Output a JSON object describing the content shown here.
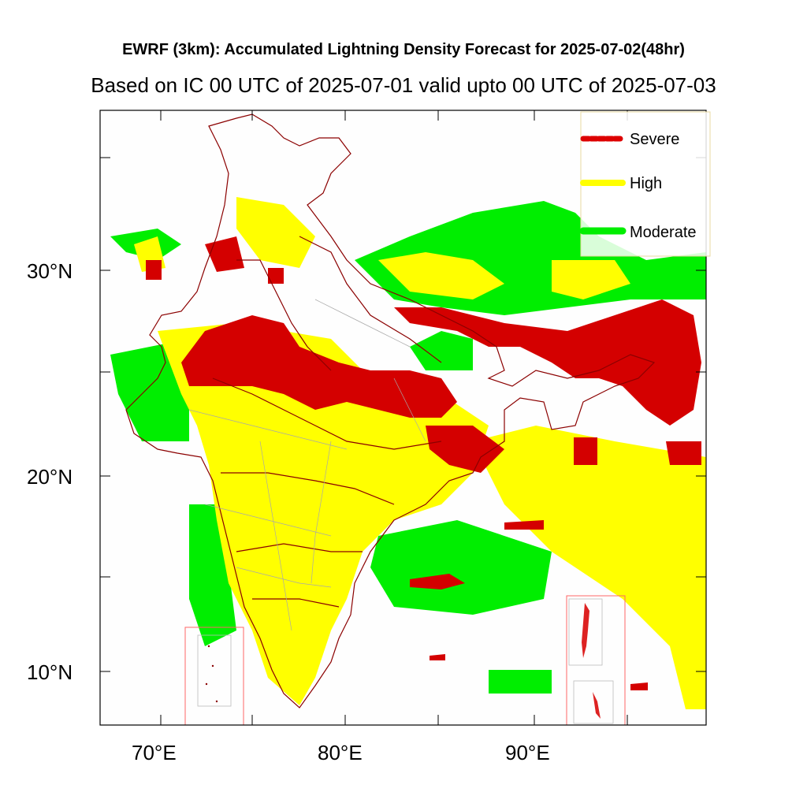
{
  "title": "EWRF (3km): Accumulated Lightning Density Forecast for 2025-07-02(48hr)",
  "subtitle": "Based on IC 00 UTC of 2025-07-01 valid upto 00 UTC of 2025-07-03",
  "axes": {
    "lat_ticks": [
      "30°N",
      "20°N",
      "10°N"
    ],
    "lon_ticks": [
      "70°E",
      "80°E",
      "90°E"
    ]
  },
  "legend": [
    {
      "label": "Severe",
      "color": "#dd0000"
    },
    {
      "label": "High",
      "color": "#ffff00"
    },
    {
      "label": "Moderate",
      "color": "#00ee00"
    }
  ],
  "colors": {
    "severe": "#d40000",
    "high": "#ffff00",
    "moderate": "#00ee00",
    "state_border": "#8b0000",
    "district_border": "#a8a8a8",
    "inset_frame": "#ff6666"
  }
}
